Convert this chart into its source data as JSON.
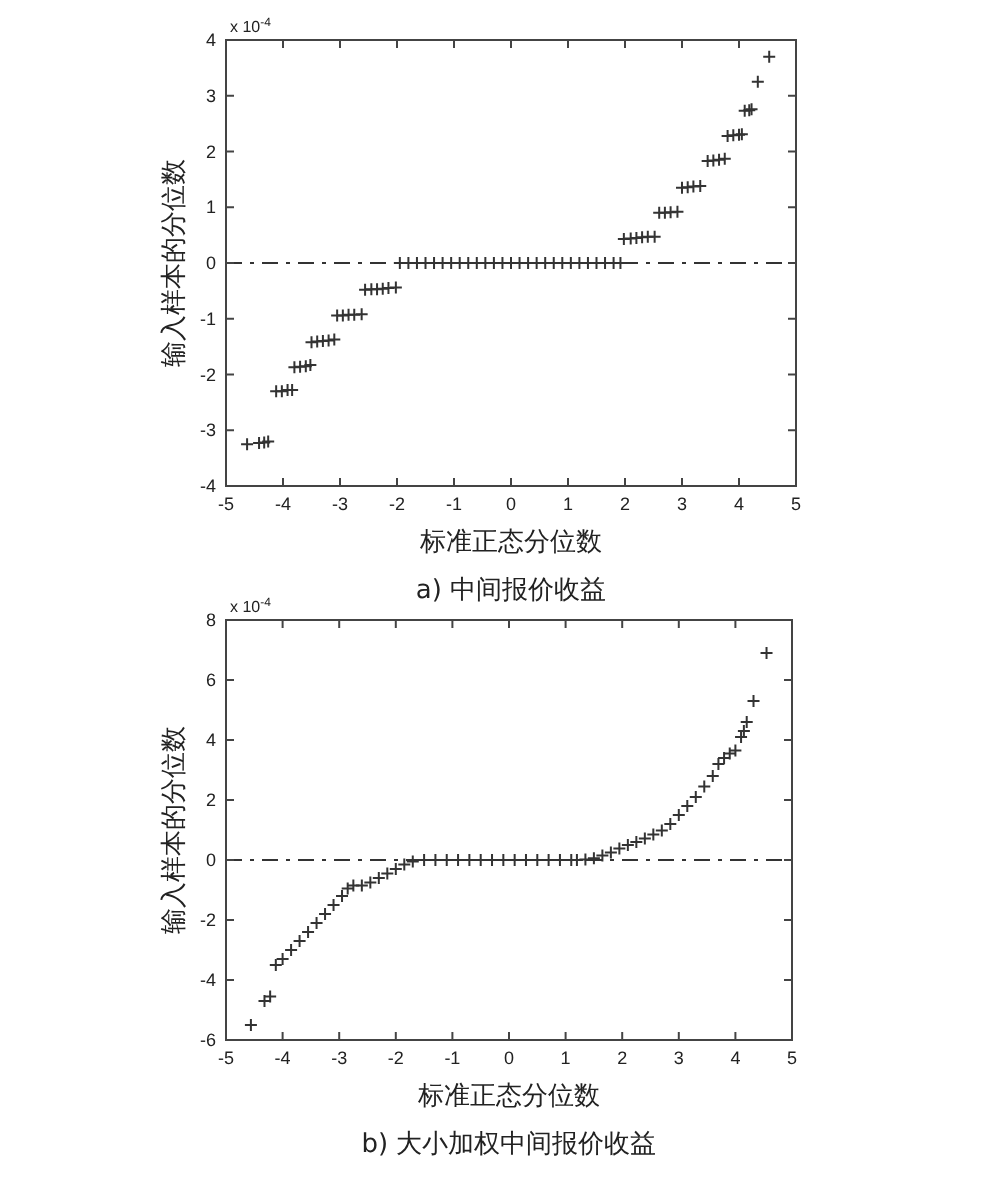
{
  "chart_data": [
    {
      "type": "scatter",
      "title": "a) 中间报价收益",
      "xlabel": "标准正态分位数",
      "ylabel": "输入样本的分位数",
      "annotations": [
        "x 10$^{-4}$"
      ],
      "xlim": [
        -5,
        5
      ],
      "ylim": [
        -4,
        4
      ],
      "xticks": [
        -5,
        -4,
        -3,
        -2,
        -1,
        0,
        1,
        2,
        3,
        4,
        5
      ],
      "yticks": [
        -4,
        -3,
        -2,
        -1,
        0,
        1,
        2,
        3,
        4
      ],
      "marker": "cross",
      "ref_lines": [
        {
          "axis": "y",
          "value": 0,
          "color": "#333333",
          "line_style": "dashed"
        }
      ],
      "series": [
        {
          "color": "#333333",
          "x": [
            -4.63,
            -4.42,
            -4.33,
            -4.26,
            -4.12,
            -4.02,
            -3.92,
            -3.84,
            -3.8,
            -3.7,
            -3.6,
            -3.52,
            -3.5,
            -3.4,
            -3.3,
            -3.2,
            -3.1,
            -3.05,
            -2.95,
            -2.85,
            -2.75,
            -2.62,
            -2.56,
            -2.45,
            -2.35,
            -2.25,
            -2.15,
            -2.02,
            -1.95,
            -1.8,
            -1.65,
            -1.5,
            -1.35,
            -1.2,
            -1.05,
            -0.9,
            -0.75,
            -0.6,
            -0.45,
            -0.3,
            -0.15,
            0,
            0.15,
            0.3,
            0.45,
            0.6,
            0.75,
            0.9,
            1.05,
            1.2,
            1.35,
            1.5,
            1.65,
            1.8,
            1.92,
            1.98,
            2.1,
            2.2,
            2.3,
            2.4,
            2.52,
            2.6,
            2.7,
            2.8,
            2.92,
            3.0,
            3.1,
            3.2,
            3.32,
            3.45,
            3.55,
            3.65,
            3.75,
            3.8,
            3.9,
            4.0,
            4.05,
            4.1,
            4.18,
            4.22,
            4.33,
            4.53
          ],
          "values": [
            -3.25,
            -3.23,
            -3.22,
            -3.2,
            -2.3,
            -2.3,
            -2.28,
            -2.28,
            -1.87,
            -1.86,
            -1.85,
            -1.83,
            -1.42,
            -1.41,
            -1.4,
            -1.39,
            -1.37,
            -0.94,
            -0.94,
            -0.93,
            -0.93,
            -0.92,
            -0.48,
            -0.47,
            -0.47,
            -0.46,
            -0.45,
            -0.44,
            0,
            0,
            0,
            0,
            0,
            0,
            0,
            0,
            0,
            0,
            0,
            0,
            0,
            0,
            0,
            0,
            0,
            0,
            0,
            0,
            0,
            0,
            0,
            0,
            0,
            0,
            0,
            0.43,
            0.44,
            0.45,
            0.46,
            0.47,
            0.47,
            0.9,
            0.9,
            0.91,
            0.92,
            1.35,
            1.36,
            1.37,
            1.38,
            1.83,
            1.84,
            1.85,
            1.87,
            2.28,
            2.29,
            2.3,
            2.31,
            2.73,
            2.74,
            2.76,
            3.25,
            3.7
          ]
        }
      ]
    },
    {
      "type": "scatter",
      "title": "b) 大小加权中间报价收益",
      "xlabel": "标准正态分位数",
      "ylabel": "输入样本的分位数",
      "annotations": [
        "x 10$^{-4}$"
      ],
      "xlim": [
        -5,
        5
      ],
      "ylim": [
        -6,
        8
      ],
      "xticks": [
        -5,
        -4,
        -3,
        -2,
        -1,
        0,
        1,
        2,
        3,
        4,
        5
      ],
      "yticks": [
        -6,
        -4,
        -2,
        0,
        2,
        4,
        6,
        8
      ],
      "marker": "cross",
      "ref_lines": [
        {
          "axis": "y",
          "value": 0,
          "color": "#333333",
          "line_style": "dashed"
        }
      ],
      "series": [
        {
          "color": "#333333",
          "x": [
            -4.56,
            -4.32,
            -4.22,
            -4.12,
            -4.0,
            -3.85,
            -3.7,
            -3.55,
            -3.4,
            -3.25,
            -3.1,
            -2.95,
            -2.85,
            -2.75,
            -2.6,
            -2.45,
            -2.3,
            -2.15,
            -2.0,
            -1.85,
            -1.7,
            -1.5,
            -1.3,
            -1.1,
            -0.9,
            -0.7,
            -0.5,
            -0.3,
            -0.1,
            0.1,
            0.3,
            0.5,
            0.7,
            0.9,
            1.1,
            1.2,
            1.35,
            1.5,
            1.65,
            1.8,
            1.95,
            2.1,
            2.25,
            2.4,
            2.55,
            2.7,
            2.85,
            3.0,
            3.15,
            3.3,
            3.45,
            3.6,
            3.7,
            3.8,
            3.9,
            4.0,
            4.1,
            4.15,
            4.2,
            4.32,
            4.55
          ],
          "values": [
            -5.5,
            -4.7,
            -4.55,
            -3.5,
            -3.3,
            -3.0,
            -2.7,
            -2.4,
            -2.1,
            -1.8,
            -1.5,
            -1.2,
            -0.95,
            -0.85,
            -0.85,
            -0.75,
            -0.6,
            -0.45,
            -0.3,
            -0.15,
            -0.05,
            0,
            0,
            0,
            0,
            0,
            0,
            0,
            0,
            0,
            0,
            0,
            0,
            0,
            0,
            0,
            0.02,
            0.06,
            0.15,
            0.25,
            0.38,
            0.5,
            0.6,
            0.72,
            0.85,
            0.98,
            1.2,
            1.5,
            1.8,
            2.1,
            2.45,
            2.8,
            3.2,
            3.4,
            3.55,
            3.65,
            4.1,
            4.3,
            4.6,
            5.3,
            6.9
          ]
        }
      ]
    }
  ]
}
